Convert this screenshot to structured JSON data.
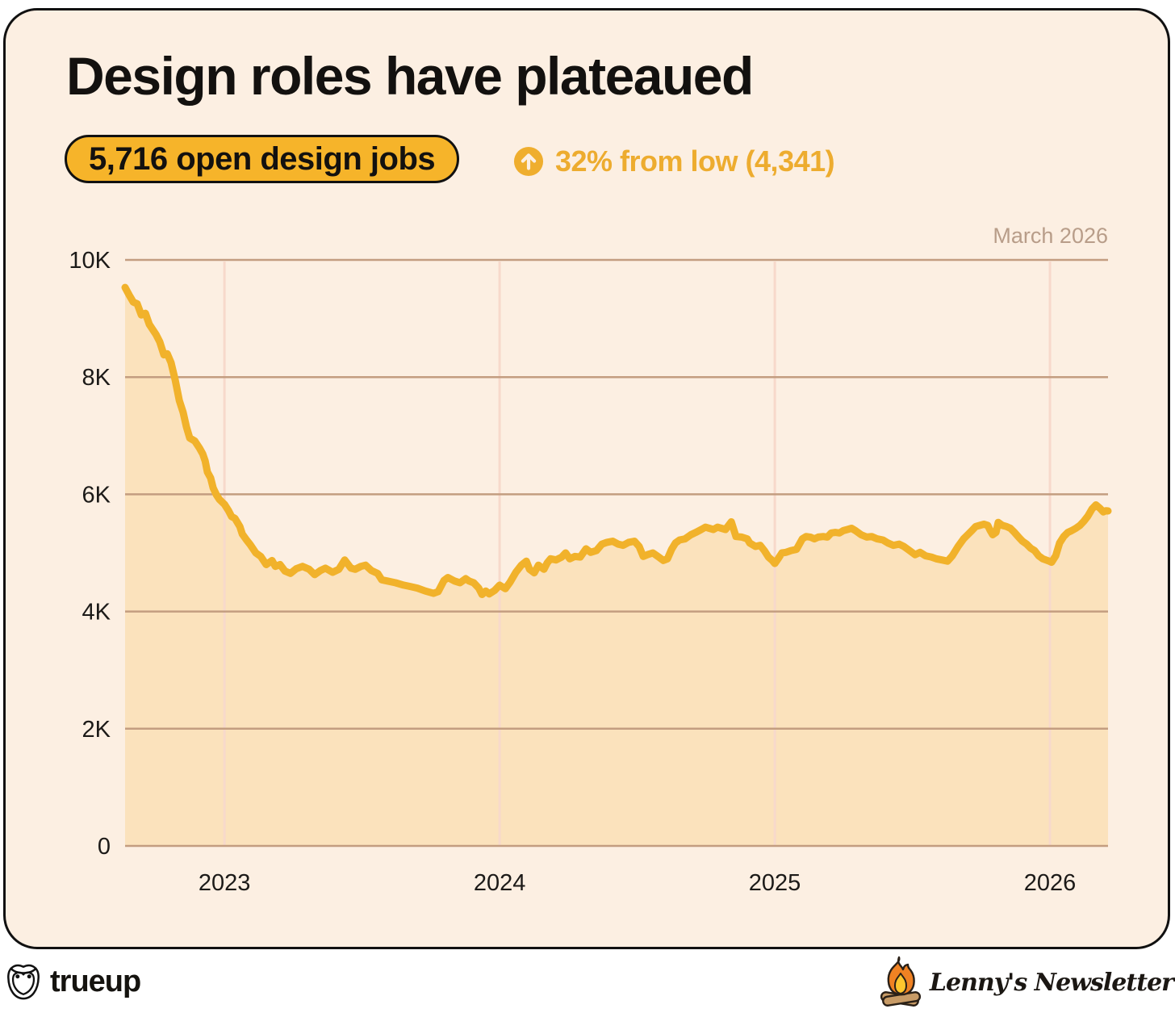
{
  "header": {
    "title": "Design roles have plateaued",
    "badge_label": "5,716 open design jobs",
    "delta_text": "32% from low (4,341)"
  },
  "annotation": "March 2026",
  "footer": {
    "brand": "trueup",
    "newsletter": "Lenny's Newsletter"
  },
  "colors": {
    "card_bg": "#fcefe2",
    "badge_bg": "#f6b42a",
    "badge_border": "#111111",
    "delta_yellow": "#edac2f",
    "line": "#f1b22b",
    "area_fill": "#fbe2bc",
    "grid_horizontal": "#c39d80",
    "grid_vertical": "#f7d9cb",
    "axis_label": "#1c1a18",
    "annotation_text": "#b89d89",
    "flame_orange": "#f08223",
    "flame_yellow": "#ffc62e",
    "log_tan": "#c89b66"
  },
  "chart_data": {
    "type": "area",
    "title": "Open design jobs over time",
    "xlabel": "",
    "ylabel": "",
    "grid": true,
    "legend_position": "none",
    "current_value": 5716,
    "low_value": 4341,
    "percent_from_low": 32,
    "x_axis": {
      "min": 2022.639,
      "max": 2026.211,
      "ticks": [
        2023,
        2024,
        2025,
        2026
      ],
      "tick_labels": [
        "2023",
        "2024",
        "2025",
        "2026"
      ]
    },
    "y_axis": {
      "min": 0,
      "max": 10000,
      "ticks": [
        0,
        2000,
        4000,
        6000,
        8000,
        10000
      ],
      "tick_labels": [
        "0",
        "2K",
        "4K",
        "6K",
        "8K",
        "10K"
      ]
    },
    "series": [
      {
        "name": "Open design jobs",
        "points": [
          [
            2022.639,
            9530
          ],
          [
            2022.654,
            9400
          ],
          [
            2022.669,
            9280
          ],
          [
            2022.683,
            9250
          ],
          [
            2022.698,
            9060
          ],
          [
            2022.713,
            9090
          ],
          [
            2022.727,
            8900
          ],
          [
            2022.751,
            8730
          ],
          [
            2022.765,
            8600
          ],
          [
            2022.78,
            8380
          ],
          [
            2022.792,
            8400
          ],
          [
            2022.806,
            8250
          ],
          [
            2022.821,
            7950
          ],
          [
            2022.836,
            7600
          ],
          [
            2022.85,
            7400
          ],
          [
            2022.862,
            7150
          ],
          [
            2022.874,
            6960
          ],
          [
            2022.892,
            6910
          ],
          [
            2022.909,
            6790
          ],
          [
            2022.921,
            6690
          ],
          [
            2022.93,
            6570
          ],
          [
            2022.938,
            6380
          ],
          [
            2022.95,
            6280
          ],
          [
            2022.959,
            6110
          ],
          [
            2022.971,
            5990
          ],
          [
            2022.982,
            5910
          ],
          [
            2023.0,
            5830
          ],
          [
            2023.015,
            5720
          ],
          [
            2023.026,
            5620
          ],
          [
            2023.038,
            5590
          ],
          [
            2023.056,
            5450
          ],
          [
            2023.065,
            5320
          ],
          [
            2023.079,
            5230
          ],
          [
            2023.094,
            5140
          ],
          [
            2023.114,
            5000
          ],
          [
            2023.132,
            4940
          ],
          [
            2023.152,
            4800
          ],
          [
            2023.173,
            4870
          ],
          [
            2023.185,
            4770
          ],
          [
            2023.202,
            4800
          ],
          [
            2023.22,
            4690
          ],
          [
            2023.24,
            4650
          ],
          [
            2023.261,
            4730
          ],
          [
            2023.284,
            4770
          ],
          [
            2023.308,
            4720
          ],
          [
            2023.328,
            4630
          ],
          [
            2023.349,
            4700
          ],
          [
            2023.367,
            4740
          ],
          [
            2023.393,
            4670
          ],
          [
            2023.416,
            4720
          ],
          [
            2023.437,
            4880
          ],
          [
            2023.46,
            4740
          ],
          [
            2023.475,
            4720
          ],
          [
            2023.496,
            4770
          ],
          [
            2023.513,
            4790
          ],
          [
            2023.534,
            4700
          ],
          [
            2023.557,
            4650
          ],
          [
            2023.572,
            4540
          ],
          [
            2023.592,
            4520
          ],
          [
            2023.622,
            4490
          ],
          [
            2023.651,
            4450
          ],
          [
            2023.672,
            4430
          ],
          [
            2023.701,
            4400
          ],
          [
            2023.73,
            4350
          ],
          [
            2023.76,
            4310
          ],
          [
            2023.777,
            4340
          ],
          [
            2023.798,
            4530
          ],
          [
            2023.812,
            4580
          ],
          [
            2023.836,
            4520
          ],
          [
            2023.856,
            4490
          ],
          [
            2023.877,
            4560
          ],
          [
            2023.889,
            4520
          ],
          [
            2023.906,
            4490
          ],
          [
            2023.924,
            4400
          ],
          [
            2023.936,
            4290
          ],
          [
            2023.95,
            4350
          ],
          [
            2023.962,
            4300
          ],
          [
            2023.982,
            4360
          ],
          [
            2024.0,
            4450
          ],
          [
            2024.021,
            4390
          ],
          [
            2024.038,
            4500
          ],
          [
            2024.059,
            4670
          ],
          [
            2024.079,
            4790
          ],
          [
            2024.097,
            4860
          ],
          [
            2024.109,
            4720
          ],
          [
            2024.126,
            4660
          ],
          [
            2024.141,
            4790
          ],
          [
            2024.161,
            4720
          ],
          [
            2024.173,
            4830
          ],
          [
            2024.185,
            4900
          ],
          [
            2024.205,
            4880
          ],
          [
            2024.226,
            4930
          ],
          [
            2024.24,
            5000
          ],
          [
            2024.255,
            4900
          ],
          [
            2024.273,
            4940
          ],
          [
            2024.293,
            4930
          ],
          [
            2024.314,
            5070
          ],
          [
            2024.331,
            5010
          ],
          [
            2024.352,
            5040
          ],
          [
            2024.372,
            5150
          ],
          [
            2024.39,
            5180
          ],
          [
            2024.411,
            5200
          ],
          [
            2024.431,
            5150
          ],
          [
            2024.449,
            5130
          ],
          [
            2024.469,
            5180
          ],
          [
            2024.49,
            5200
          ],
          [
            2024.507,
            5110
          ],
          [
            2024.522,
            4940
          ],
          [
            2024.537,
            4970
          ],
          [
            2024.557,
            5000
          ],
          [
            2024.578,
            4930
          ],
          [
            2024.595,
            4870
          ],
          [
            2024.61,
            4900
          ],
          [
            2024.625,
            5060
          ],
          [
            2024.639,
            5170
          ],
          [
            2024.654,
            5220
          ],
          [
            2024.674,
            5240
          ],
          [
            2024.695,
            5310
          ],
          [
            2024.713,
            5350
          ],
          [
            2024.733,
            5400
          ],
          [
            2024.748,
            5440
          ],
          [
            2024.762,
            5420
          ],
          [
            2024.777,
            5400
          ],
          [
            2024.792,
            5440
          ],
          [
            2024.806,
            5420
          ],
          [
            2024.821,
            5400
          ],
          [
            2024.842,
            5530
          ],
          [
            2024.859,
            5280
          ],
          [
            2024.88,
            5270
          ],
          [
            2024.9,
            5240
          ],
          [
            2024.909,
            5170
          ],
          [
            2024.93,
            5110
          ],
          [
            2024.947,
            5130
          ],
          [
            2024.962,
            5040
          ],
          [
            2024.977,
            4930
          ],
          [
            2024.991,
            4870
          ],
          [
            2025.0,
            4820
          ],
          [
            2025.012,
            4900
          ],
          [
            2025.026,
            5000
          ],
          [
            2025.041,
            5010
          ],
          [
            2025.059,
            5040
          ],
          [
            2025.079,
            5060
          ],
          [
            2025.1,
            5240
          ],
          [
            2025.114,
            5280
          ],
          [
            2025.129,
            5270
          ],
          [
            2025.144,
            5240
          ],
          [
            2025.158,
            5270
          ],
          [
            2025.176,
            5280
          ],
          [
            2025.191,
            5270
          ],
          [
            2025.205,
            5340
          ],
          [
            2025.22,
            5350
          ],
          [
            2025.235,
            5340
          ],
          [
            2025.249,
            5380
          ],
          [
            2025.264,
            5400
          ],
          [
            2025.279,
            5420
          ],
          [
            2025.293,
            5380
          ],
          [
            2025.314,
            5310
          ],
          [
            2025.334,
            5270
          ],
          [
            2025.352,
            5280
          ],
          [
            2025.372,
            5240
          ],
          [
            2025.393,
            5220
          ],
          [
            2025.411,
            5170
          ],
          [
            2025.431,
            5130
          ],
          [
            2025.452,
            5150
          ],
          [
            2025.469,
            5110
          ],
          [
            2025.49,
            5040
          ],
          [
            2025.51,
            4970
          ],
          [
            2025.528,
            5010
          ],
          [
            2025.548,
            4950
          ],
          [
            2025.569,
            4930
          ],
          [
            2025.587,
            4900
          ],
          [
            2025.607,
            4880
          ],
          [
            2025.628,
            4860
          ],
          [
            2025.645,
            4950
          ],
          [
            2025.666,
            5110
          ],
          [
            2025.686,
            5240
          ],
          [
            2025.701,
            5310
          ],
          [
            2025.716,
            5380
          ],
          [
            2025.73,
            5450
          ],
          [
            2025.745,
            5470
          ],
          [
            2025.76,
            5490
          ],
          [
            2025.774,
            5470
          ],
          [
            2025.783,
            5380
          ],
          [
            2025.792,
            5310
          ],
          [
            2025.804,
            5350
          ],
          [
            2025.812,
            5520
          ],
          [
            2025.827,
            5470
          ],
          [
            2025.842,
            5450
          ],
          [
            2025.856,
            5420
          ],
          [
            2025.871,
            5350
          ],
          [
            2025.886,
            5270
          ],
          [
            2025.9,
            5200
          ],
          [
            2025.915,
            5150
          ],
          [
            2025.93,
            5080
          ],
          [
            2025.944,
            5040
          ],
          [
            2025.959,
            4950
          ],
          [
            2025.974,
            4900
          ],
          [
            2025.997,
            4860
          ],
          [
            2026.006,
            4840
          ],
          [
            2026.021,
            4950
          ],
          [
            2026.035,
            5170
          ],
          [
            2026.05,
            5280
          ],
          [
            2026.065,
            5350
          ],
          [
            2026.079,
            5380
          ],
          [
            2026.094,
            5420
          ],
          [
            2026.109,
            5470
          ],
          [
            2026.123,
            5540
          ],
          [
            2026.138,
            5630
          ],
          [
            2026.153,
            5750
          ],
          [
            2026.167,
            5820
          ],
          [
            2026.182,
            5760
          ],
          [
            2026.194,
            5700
          ],
          [
            2026.203,
            5720
          ],
          [
            2026.211,
            5716
          ]
        ]
      }
    ]
  }
}
